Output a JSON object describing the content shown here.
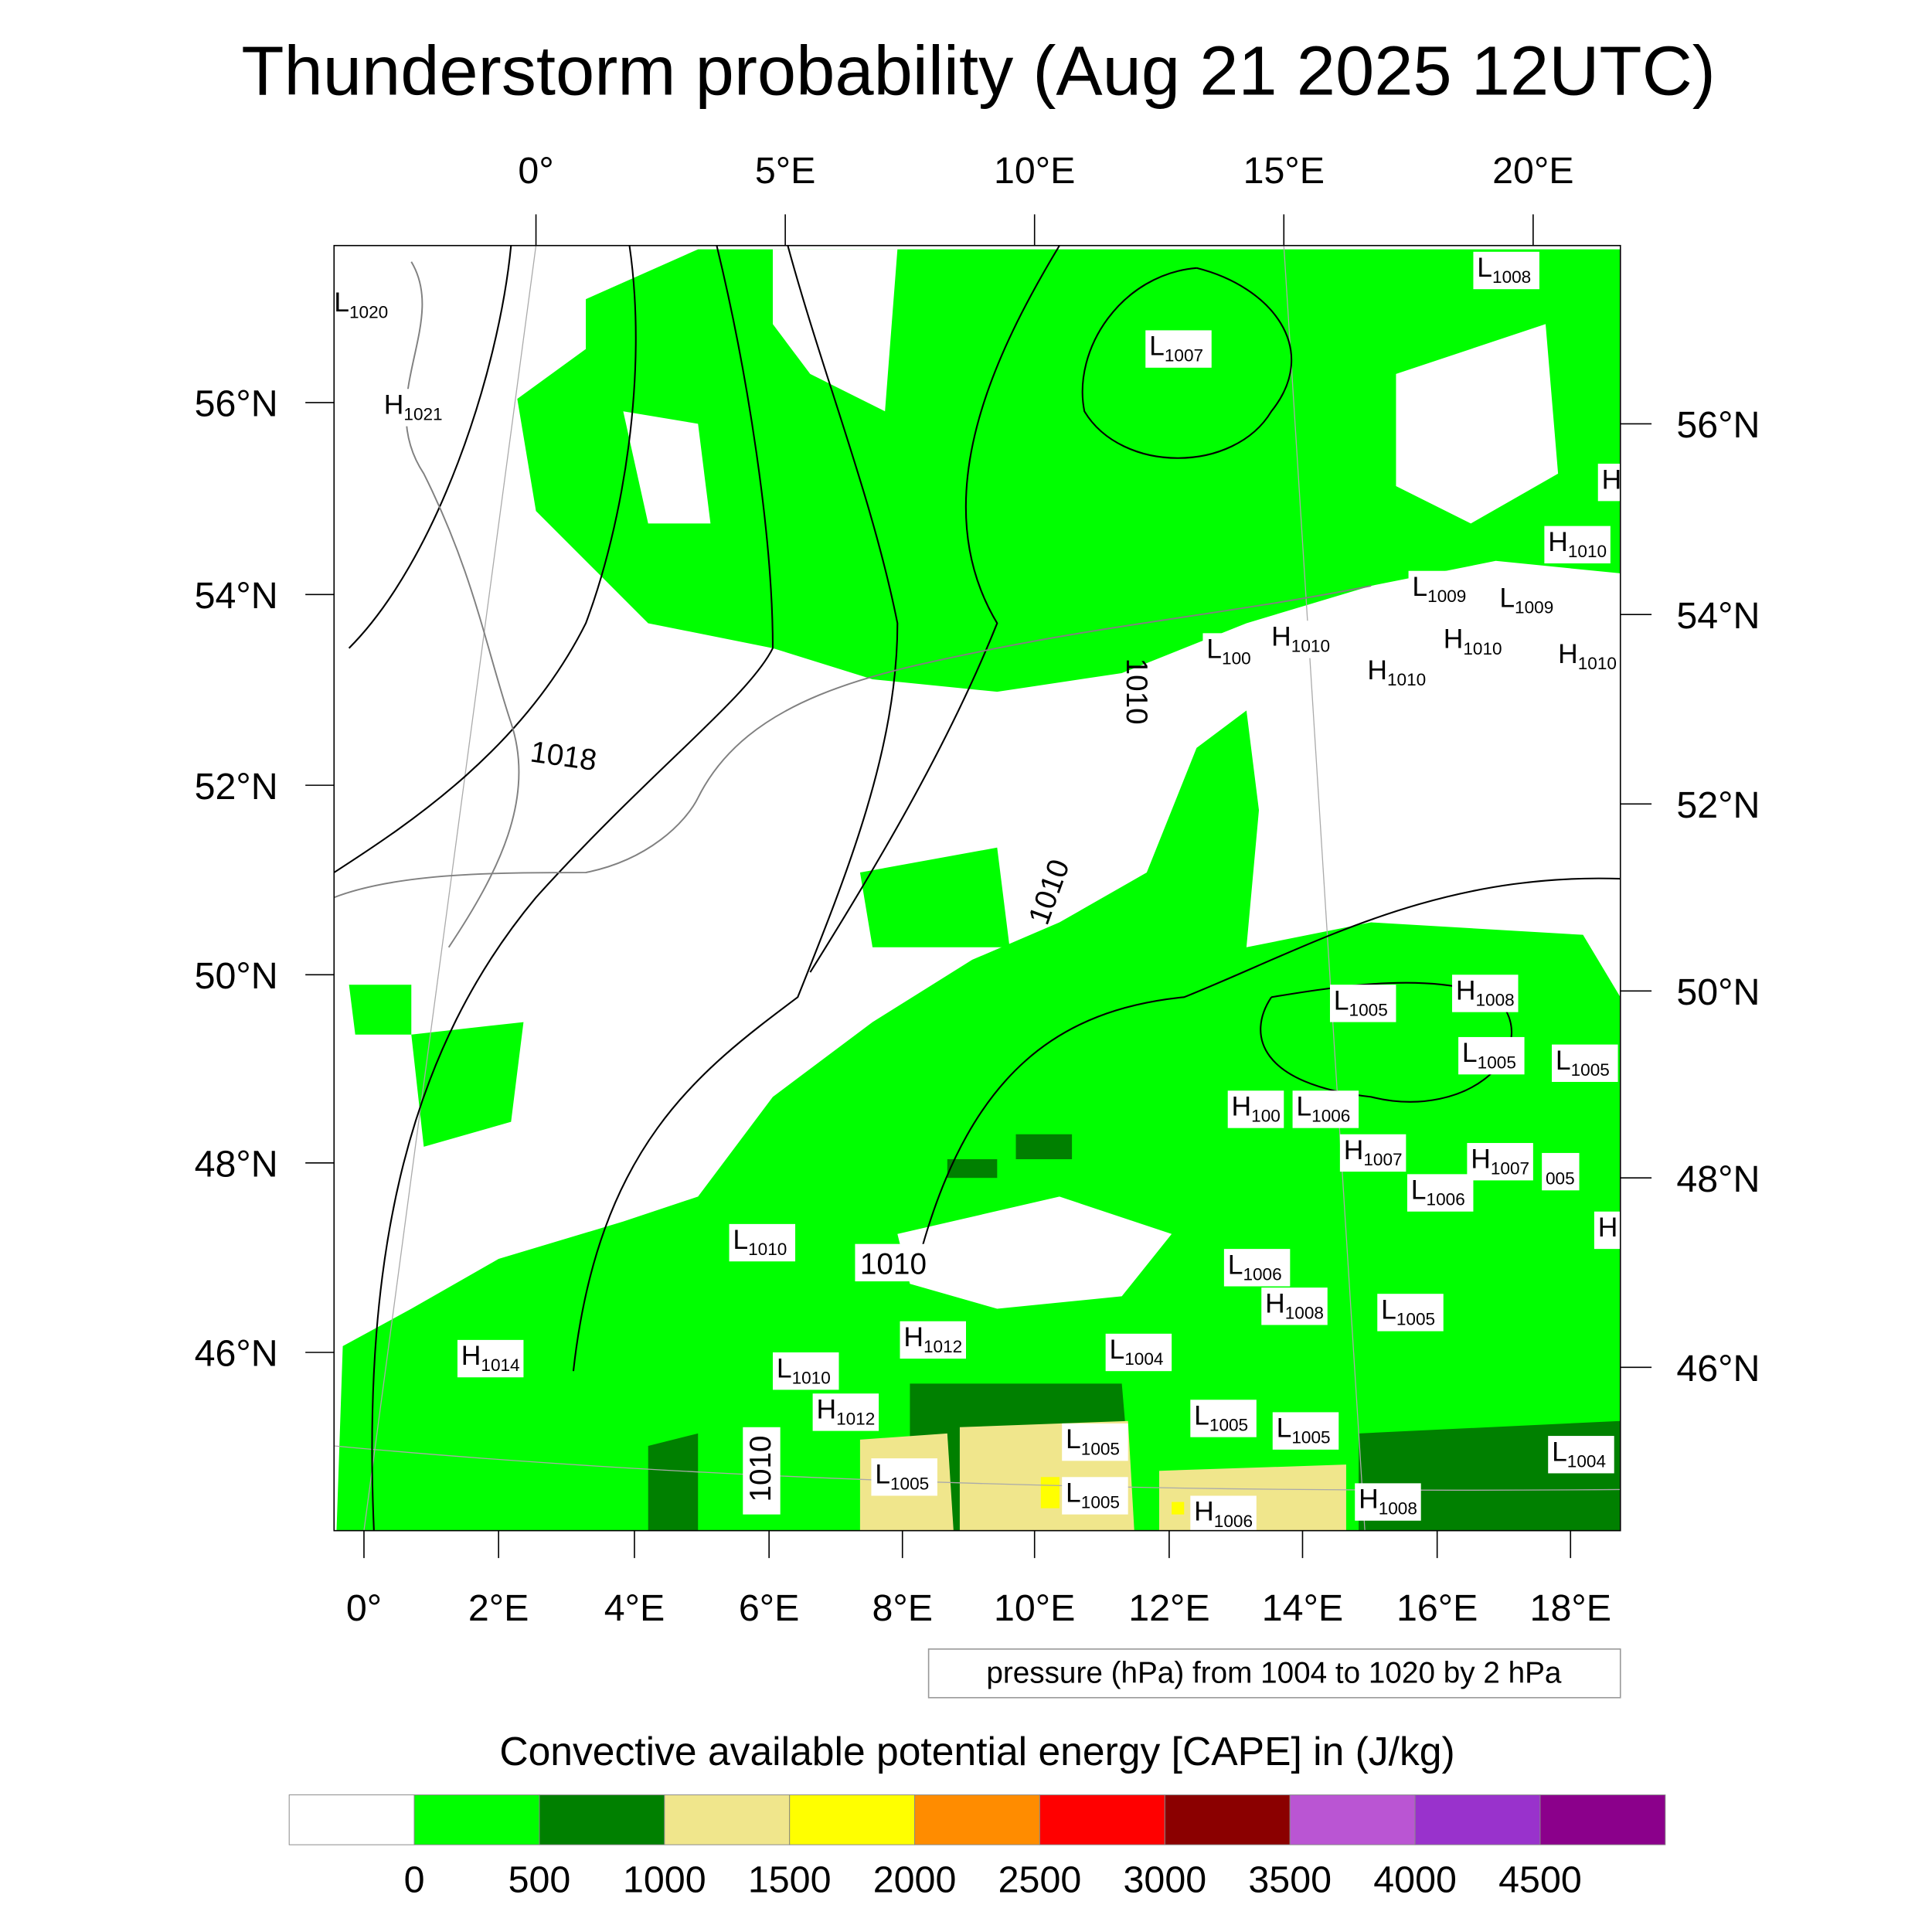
{
  "title": "Thunderstorm probability (Aug 21 2025 12UTC)",
  "axes": {
    "top_lon_labels": [
      "0°",
      "5°E",
      "10°E",
      "15°E",
      "20°E"
    ],
    "bottom_lon_labels": [
      "0°",
      "2°E",
      "4°E",
      "6°E",
      "8°E",
      "10°E",
      "12°E",
      "14°E",
      "16°E",
      "18°E"
    ],
    "left_lat_labels": [
      "56°N",
      "54°N",
      "52°N",
      "50°N",
      "48°N",
      "46°N"
    ],
    "right_lat_labels": [
      "56°N",
      "54°N",
      "52°N",
      "50°N",
      "48°N",
      "46°N"
    ]
  },
  "pressure_centers": [
    {
      "t": "L",
      "v": "1020"
    },
    {
      "t": "H",
      "v": "1021"
    },
    {
      "t": "L",
      "v": "1007"
    },
    {
      "t": "L",
      "v": "1008"
    },
    {
      "t": "H",
      "v": ""
    },
    {
      "t": "H",
      "v": "1010"
    },
    {
      "t": "L",
      "v": "1009"
    },
    {
      "t": "L",
      "v": "1009"
    },
    {
      "t": "H",
      "v": "1010"
    },
    {
      "t": "H",
      "v": "1010"
    },
    {
      "t": "H",
      "v": "1010"
    },
    {
      "t": "L",
      "v": "100"
    },
    {
      "t": "H",
      "v": "1010"
    },
    {
      "t": "L",
      "v": "1005"
    },
    {
      "t": "H",
      "v": "1008"
    },
    {
      "t": "L",
      "v": "1005"
    },
    {
      "t": "L",
      "v": "1005"
    },
    {
      "t": "H",
      "v": "100"
    },
    {
      "t": "L",
      "v": "1006"
    },
    {
      "t": "H",
      "v": "1007"
    },
    {
      "t": "L",
      "v": "1006"
    },
    {
      "t": "H",
      "v": "1007"
    },
    {
      "t": "",
      "v": "005"
    },
    {
      "t": "H",
      "v": ""
    },
    {
      "t": "L",
      "v": "1010"
    },
    {
      "t": "L",
      "v": "1006"
    },
    {
      "t": "H",
      "v": "1008"
    },
    {
      "t": "L",
      "v": "1005"
    },
    {
      "t": "H",
      "v": "1012"
    },
    {
      "t": "L",
      "v": "1004"
    },
    {
      "t": "H",
      "v": "1014"
    },
    {
      "t": "L",
      "v": "1010"
    },
    {
      "t": "H",
      "v": "1012"
    },
    {
      "t": "L",
      "v": "1005"
    },
    {
      "t": "L",
      "v": "1005"
    },
    {
      "t": "L",
      "v": "1005"
    },
    {
      "t": "L",
      "v": "1004"
    },
    {
      "t": "L",
      "v": "1005"
    },
    {
      "t": "L",
      "v": "1005"
    },
    {
      "t": "H",
      "v": "1008"
    },
    {
      "t": "H",
      "v": "1006"
    }
  ],
  "contour_labels": [
    "1018",
    "1010",
    "1010",
    "1010",
    "1010"
  ],
  "pressure_legend": "pressure (hPa) from 1004 to 1020 by 2 hPa",
  "colorbar": {
    "title": "Convective available potential energy [CAPE] in (J/kg)",
    "colors": [
      "#ffffff",
      "#00ff00",
      "#008000",
      "#f0e68c",
      "#ffff00",
      "#ff8c00",
      "#ff0000",
      "#8b0000",
      "#ba55d3",
      "#9932cc",
      "#8b008b"
    ],
    "labels": [
      "0",
      "500",
      "1000",
      "1500",
      "2000",
      "2500",
      "3000",
      "3500",
      "4000",
      "4500"
    ]
  }
}
